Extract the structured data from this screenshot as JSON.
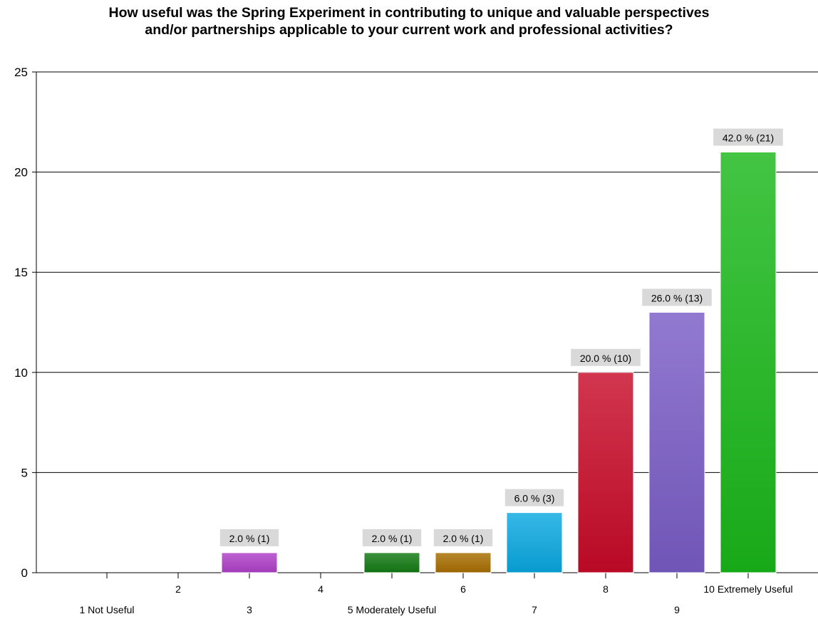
{
  "chart_data": {
    "type": "bar",
    "title_lines": [
      "How useful was the Spring Experiment in contributing to unique and valuable perspectives",
      "and/or partnerships applicable to your current work and professional activities?"
    ],
    "categories": [
      "1 Not Useful",
      "2",
      "3",
      "4",
      "5 Moderately Useful",
      "6",
      "7",
      "8",
      "9",
      "10 Extremely Useful"
    ],
    "values": [
      0,
      0,
      1,
      0,
      1,
      1,
      3,
      10,
      13,
      21
    ],
    "data_labels": [
      "",
      "",
      "2.0 % (1)",
      "",
      "2.0 % (1)",
      "2.0 % (1)",
      "6.0 % (3)",
      "20.0 % (10)",
      "26.0 % (13)",
      "42.0 % (21)"
    ],
    "colors": [
      "#888888",
      "#888888",
      "#b040c8",
      "#888888",
      "#127a12",
      "#a86e00",
      "#0aa8e0",
      "#c80a28",
      "#7a5cc6",
      "#1ab81a"
    ],
    "ylim": [
      0,
      25
    ],
    "yticks": [
      0,
      5,
      10,
      15,
      20,
      25
    ],
    "grid": true,
    "xlabel": "",
    "ylabel": ""
  }
}
